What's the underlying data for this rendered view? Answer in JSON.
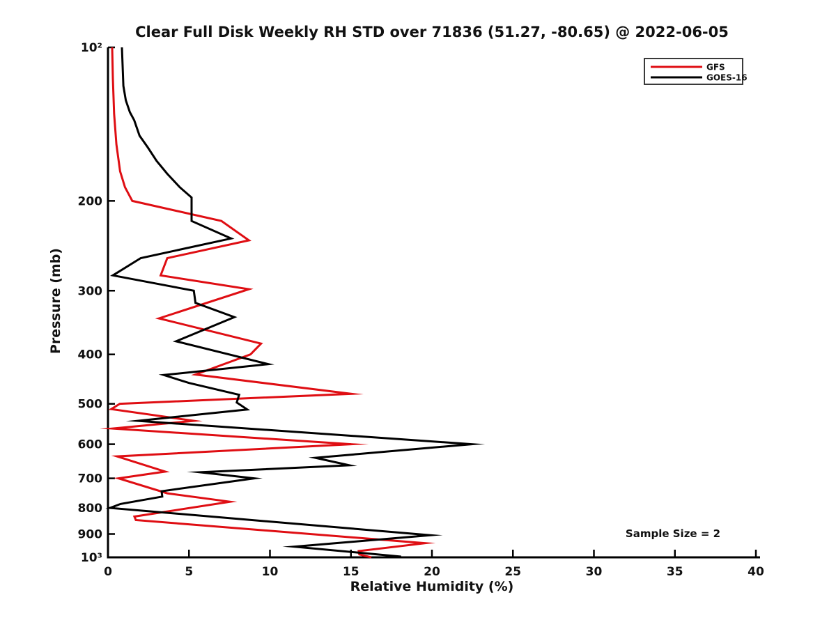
{
  "figure": {
    "title": "Clear Full Disk Weekly RH STD over 71836 (51.27, -80.65) @ 2022-06-05",
    "annotation": "Sample Size = 2"
  },
  "chart_data": {
    "type": "line",
    "title": "Clear Full Disk Weekly RH STD over 71836 (51.27, -80.65) @ 2022-06-05",
    "xlabel": "Relative Humidity (%)",
    "ylabel": "Pressure (mb)",
    "xlim": [
      0,
      40
    ],
    "ylim": [
      100,
      1000
    ],
    "yscale": "log",
    "y_inverted": true,
    "grid": false,
    "xticks": [
      0,
      5,
      10,
      15,
      20,
      25,
      30,
      35,
      40
    ],
    "yticks": [
      {
        "v": 100,
        "label": "10²"
      },
      {
        "v": 200,
        "label": "200"
      },
      {
        "v": 300,
        "label": "300"
      },
      {
        "v": 400,
        "label": "400"
      },
      {
        "v": 500,
        "label": "500"
      },
      {
        "v": 600,
        "label": "600"
      },
      {
        "v": 700,
        "label": "700"
      },
      {
        "v": 800,
        "label": "800"
      },
      {
        "v": 900,
        "label": "900"
      },
      {
        "v": 1000,
        "label": "10³"
      }
    ],
    "legend": {
      "position": "top-right",
      "entries": [
        {
          "name": "GFS",
          "color": "#df0e13"
        },
        {
          "name": "GOES-16",
          "color": "#000000"
        }
      ]
    },
    "annotation": "Sample Size = 2",
    "series": [
      {
        "name": "GFS",
        "color": "#df0e13",
        "points_format": "[relative_humidity_pct, pressure_mb]",
        "points": [
          [
            0.26,
            100
          ],
          [
            0.3,
            115
          ],
          [
            0.38,
            135
          ],
          [
            0.52,
            155
          ],
          [
            0.75,
            175
          ],
          [
            1.05,
            188
          ],
          [
            1.5,
            200
          ],
          [
            7.0,
            219
          ],
          [
            8.7,
            239
          ],
          [
            3.66,
            259
          ],
          [
            3.25,
            280
          ],
          [
            8.7,
            298
          ],
          [
            3.15,
            340
          ],
          [
            9.45,
            381
          ],
          [
            8.8,
            400
          ],
          [
            5.4,
            438
          ],
          [
            15.0,
            478
          ],
          [
            0.73,
            500
          ],
          [
            0.2,
            512
          ],
          [
            5.3,
            540
          ],
          [
            0.3,
            559
          ],
          [
            15.0,
            600
          ],
          [
            0.56,
            634
          ],
          [
            3.53,
            679
          ],
          [
            0.65,
            700
          ],
          [
            3.66,
            749
          ],
          [
            7.53,
            778
          ],
          [
            1.63,
            832
          ],
          [
            1.72,
            845
          ],
          [
            19.57,
            938
          ],
          [
            15.48,
            972
          ],
          [
            15.52,
            987
          ],
          [
            16.26,
            1000
          ]
        ]
      },
      {
        "name": "GOES-16",
        "color": "#000000",
        "points_format": "[relative_humidity_pct, pressure_mb]",
        "points": [
          [
            0.86,
            100
          ],
          [
            0.95,
            119
          ],
          [
            1.1,
            127
          ],
          [
            1.35,
            134
          ],
          [
            1.62,
            139
          ],
          [
            1.95,
            149
          ],
          [
            2.45,
            157
          ],
          [
            3.0,
            167
          ],
          [
            3.66,
            177
          ],
          [
            4.43,
            188
          ],
          [
            5.16,
            197
          ],
          [
            5.16,
            219
          ],
          [
            7.6,
            237
          ],
          [
            2.02,
            259
          ],
          [
            0.3,
            280
          ],
          [
            5.3,
            300
          ],
          [
            5.4,
            317
          ],
          [
            7.8,
            338
          ],
          [
            4.2,
            377
          ],
          [
            9.9,
            418
          ],
          [
            3.44,
            439
          ],
          [
            5.0,
            455
          ],
          [
            8.1,
            480
          ],
          [
            7.95,
            497
          ],
          [
            8.6,
            513
          ],
          [
            1.85,
            540
          ],
          [
            22.45,
            600
          ],
          [
            12.8,
            638
          ],
          [
            14.9,
            660
          ],
          [
            5.68,
            681
          ],
          [
            9.03,
            700
          ],
          [
            3.31,
            742
          ],
          [
            3.35,
            760
          ],
          [
            0.77,
            786
          ],
          [
            0.13,
            800
          ],
          [
            19.9,
            905
          ],
          [
            11.5,
            953
          ],
          [
            18.1,
            997
          ]
        ]
      }
    ]
  }
}
